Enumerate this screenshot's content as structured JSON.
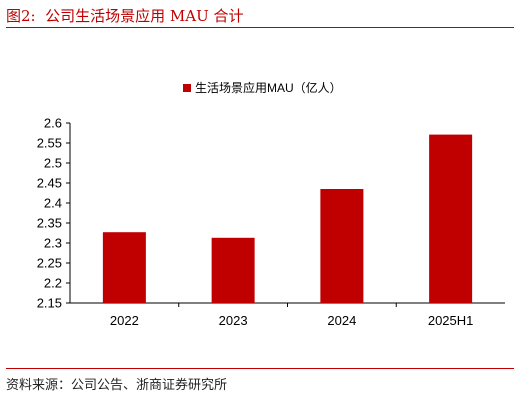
{
  "figure": {
    "label": "图2:",
    "title": "公司生活场景应用 MAU 合计",
    "source": "资料来源：公司公告、浙商证券研究所"
  },
  "chart_data": {
    "type": "bar",
    "categories": [
      "2022",
      "2023",
      "2024",
      "2025H1"
    ],
    "series": [
      {
        "name": "生活场景应用MAU（亿人）",
        "values": [
          2.327,
          2.313,
          2.435,
          2.571
        ],
        "color": "#c00000"
      }
    ],
    "yticks": [
      "2.6",
      "2.55",
      "2.5",
      "2.45",
      "2.4",
      "2.35",
      "2.3",
      "2.25",
      "2.2",
      "2.15"
    ],
    "ylim": [
      2.15,
      2.6
    ],
    "legend_position": "top-center",
    "grid": false
  }
}
